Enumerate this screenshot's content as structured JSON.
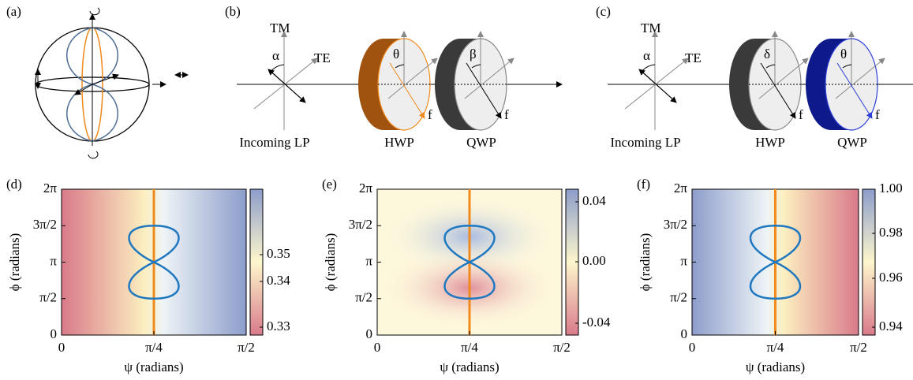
{
  "panel_a": {
    "label": "(a)"
  },
  "diagrams": [
    {
      "label": "(b)",
      "tm": "TM",
      "te": "TE",
      "alpha": "α",
      "hwp_angle": "θ",
      "qwp_angle": "β",
      "hwp_axis": "f",
      "qwp_axis": "f",
      "captions": [
        "Incoming LP",
        "HWP",
        "QWP"
      ]
    },
    {
      "label": "(c)",
      "tm": "TM",
      "te": "TE",
      "alpha": "α",
      "hwp_angle": "δ",
      "qwp_angle": "θ",
      "hwp_axis": "f",
      "qwp_axis": "f",
      "captions": [
        "Incoming LP",
        "HWP",
        "QWP"
      ]
    }
  ],
  "heatmaps": [
    {
      "label": "(d)",
      "x_label": "ψ (radians)",
      "y_label": "ϕ (radians)",
      "x_ticks": [
        "0",
        "π/4",
        "π/2"
      ],
      "y_ticks": [
        "0",
        "π/2",
        "π",
        "3π/2",
        "2π"
      ],
      "colorbar_ticks": [
        "0.33",
        "0.34",
        "0.35"
      ]
    },
    {
      "label": "(e)",
      "x_label": "ψ (radians)",
      "y_label": "ϕ (radians)",
      "x_ticks": [
        "0",
        "π/4",
        "π/2"
      ],
      "y_ticks": [
        "0",
        "π/2",
        "π",
        "3π/2",
        "2π"
      ],
      "colorbar_ticks": [
        "-0.04",
        "0.00",
        "0.04"
      ]
    },
    {
      "label": "(f)",
      "x_label": "ψ (radians)",
      "y_label": "ϕ (radians)",
      "x_ticks": [
        "0",
        "π/4",
        "π/2"
      ],
      "y_ticks": [
        "0",
        "π/2",
        "π",
        "3π/2",
        "2π"
      ],
      "colorbar_ticks": [
        "0.94",
        "0.96",
        "0.98",
        "1.00"
      ]
    }
  ]
}
